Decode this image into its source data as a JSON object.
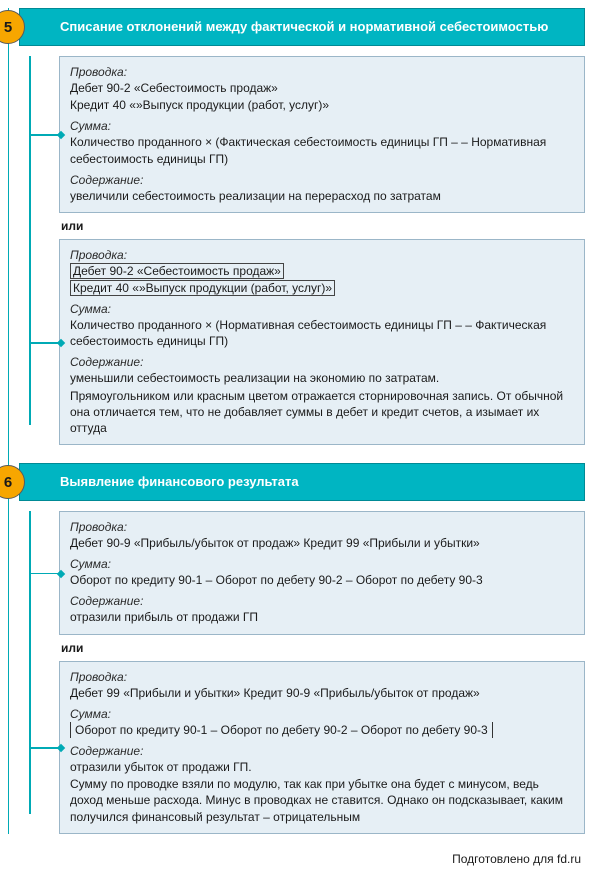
{
  "colors": {
    "accent": "#00b5c2",
    "accent_line": "#00aab5",
    "num_bg": "#f7a600",
    "card_bg": "#e6eff5",
    "card_border": "#9bb6c8"
  },
  "steps": [
    {
      "num": "5",
      "title": "Списание отклонений между фактической и нормативной себестоимостью",
      "card1": {
        "l_pr": "Проводка:",
        "pr1": "Дебет 90-2 «Себестоимость продаж»",
        "pr2": "Кредит 40 «»Выпуск продукции (работ, услуг)»",
        "l_sum": "Сумма:",
        "sum": "Количество проданного × (Фактическая себестоимость единицы ГП – – Нормативная себестоимость единицы ГП)",
        "l_cont": "Содержание:",
        "cont": "увеличили себестоимость реализации на перерасход по затратам"
      },
      "or": "или",
      "card2": {
        "l_pr": "Проводка:",
        "st1": "Дебет 90-2 «Себестоимость продаж»",
        "st2": "Кредит 40 «»Выпуск продукции (работ, услуг)»",
        "l_sum": "Сумма:",
        "sum": "Количество проданного × (Нормативная себестоимость единицы ГП – – Фактическая себестоимость единицы ГП)",
        "l_cont": "Содержание:",
        "cont1": "уменьшили себестоимость реализации на экономию по затратам.",
        "cont2": "Прямоугольником или красным цветом отражается сторнировочная запись. От обычной она отличается тем, что не добавляет суммы в дебет и кредит счетов, а изымает их оттуда"
      }
    },
    {
      "num": "6",
      "title": "Выявление финансового результата",
      "card1": {
        "l_pr": "Проводка:",
        "pr": "Дебет 90-9 «Прибыль/убыток от продаж» Кредит 99 «Прибыли и убытки»",
        "l_sum": "Сумма:",
        "sum": "Оборот по кредиту 90-1 – Оборот по дебету 90-2 – Оборот по дебету 90-3",
        "l_cont": "Содержание:",
        "cont": "отразили прибыль от продажи ГП"
      },
      "or": "или",
      "card2": {
        "l_pr": "Проводка:",
        "pr": "Дебет 99 «Прибыли и убытки» Кредит 90-9 «Прибыль/убыток от продаж»",
        "l_sum": "Сумма:",
        "sum": "Оборот по кредиту 90-1 – Оборот по дебету 90-2 – Оборот по дебету 90-3",
        "l_cont": "Содержание:",
        "cont1": "отразили убыток от продажи ГП.",
        "cont2": "Сумму по проводке взяли по модулю, так как при убытке она будет с минусом, ведь доход меньше расхода. Минус в проводках не ставится. Однако он подсказывает, каким получился финансовый результат – отрицательным"
      }
    }
  ],
  "footer": "Подготовлено для fd.ru"
}
